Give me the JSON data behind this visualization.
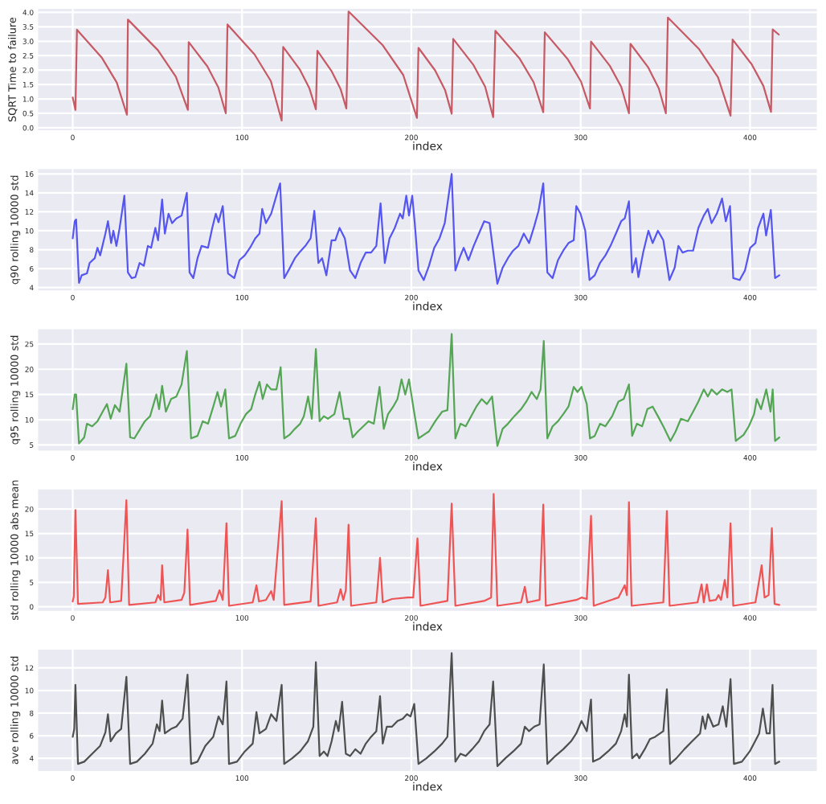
{
  "chart_data": [
    {
      "type": "line",
      "xlabel": "index",
      "ylabel": "SQRT Time to failure",
      "grid": true,
      "xlim": [
        -21,
        440
      ],
      "xticks": [
        0,
        100,
        200,
        300,
        400
      ],
      "ylim": [
        -0.12,
        4.15
      ],
      "yticks": [
        {
          "value": 0,
          "label": "0.0"
        },
        0.5,
        {
          "value": 1,
          "label": "1.0"
        },
        1.5,
        {
          "value": 2,
          "label": "2.0"
        },
        2.5,
        {
          "value": 3,
          "label": "3.0"
        },
        3.5,
        {
          "value": 4,
          "label": "4.0"
        }
      ],
      "x": [
        0,
        1.6,
        2.5,
        17.3,
        26,
        32,
        32.6,
        50.3,
        60.9,
        68,
        68.5,
        79.5,
        86,
        90.4,
        91.4,
        107.4,
        117,
        123.4,
        124.3,
        134,
        139.7,
        143.6,
        144.5,
        153,
        158.2,
        161.6,
        162.9,
        183.1,
        195.2,
        203.3,
        204.2,
        214,
        219.9,
        223.8,
        224.7,
        236.5,
        243.6,
        248.3,
        249.6,
        263.8,
        272.2,
        277.9,
        278.8,
        292.2,
        300.2,
        305.5,
        306.1,
        317.3,
        324,
        328.5,
        329.4,
        339.9,
        346.1,
        350.3,
        351.5,
        370,
        381.1,
        388.5,
        389.7,
        401,
        407.9,
        412.4,
        413.4,
        417
      ],
      "series": [
        {
          "color": "#c0404a",
          "values": [
            1.05,
            0.62,
            3.4,
            2.42,
            1.57,
            0.45,
            3.75,
            2.69,
            1.77,
            0.62,
            2.97,
            2.13,
            1.4,
            0.5,
            3.58,
            2.54,
            1.62,
            0.25,
            2.8,
            2.03,
            1.38,
            0.64,
            2.67,
            1.95,
            1.34,
            0.67,
            4.03,
            2.86,
            1.83,
            0.34,
            2.77,
            1.99,
            1.31,
            0.49,
            3.08,
            2.19,
            1.42,
            0.37,
            3.36,
            2.41,
            1.58,
            0.54,
            3.31,
            2.39,
            1.6,
            0.67,
            2.99,
            2.14,
            1.41,
            0.5,
            2.91,
            2.09,
            1.37,
            0.5,
            3.82,
            2.72,
            1.75,
            0.42,
            3.06,
            2.2,
            1.45,
            0.55,
            3.41,
            3.23
          ]
        }
      ]
    },
    {
      "type": "line",
      "xlabel": "index",
      "ylabel": "q90 rolling 10000 std",
      "grid": true,
      "xlim": [
        -21,
        440
      ],
      "xticks": [
        0,
        100,
        200,
        300,
        400
      ],
      "ylim": [
        3.6,
        16.6
      ],
      "yticks": [
        4,
        6,
        8,
        10,
        12,
        14,
        16
      ],
      "x": [
        0,
        1.2,
        2,
        3.7,
        5.3,
        8.4,
        10,
        13,
        14.6,
        16.2,
        19.3,
        20.8,
        22.7,
        24,
        25.8,
        27.7,
        30.5,
        32.6,
        34.8,
        37,
        39.5,
        42,
        44.4,
        46.3,
        48.8,
        50.4,
        52.8,
        54.4,
        56.6,
        58.7,
        61.2,
        64.3,
        67.4,
        69,
        71.2,
        73.7,
        76.1,
        79.9,
        82.4,
        84.5,
        86.1,
        88.6,
        91.7,
        95.4,
        98.5,
        101.6,
        104.7,
        107.8,
        110.3,
        111.9,
        114.1,
        117.2,
        120.3,
        122.5,
        124.9,
        128,
        131.2,
        134.3,
        137.4,
        140.5,
        142.7,
        145.1,
        147.3,
        149.8,
        152.9,
        155.1,
        157.6,
        160.7,
        163.8,
        166.9,
        170,
        173.1,
        176.2,
        179.3,
        181.8,
        184.3,
        187.1,
        190.2,
        193.3,
        194.9,
        197,
        198.6,
        200.5,
        202,
        204.2,
        207.3,
        210.4,
        213.5,
        216.6,
        219.7,
        223.8,
        226,
        228.4,
        230.9,
        233.7,
        236.8,
        239.9,
        243,
        246.2,
        250.8,
        253.9,
        257,
        260.1,
        263.2,
        266.4,
        269.5,
        272.6,
        275.1,
        277.9,
        280.3,
        283.4,
        286.6,
        289.7,
        292.8,
        295.9,
        297.4,
        299.9,
        302.7,
        305.2,
        308.3,
        311.4,
        314.6,
        317.6,
        320.8,
        323.9,
        326,
        328.5,
        330.4,
        332.6,
        334.1,
        336.9,
        340,
        342.5,
        345.6,
        348.8,
        352.4,
        355.5,
        357.7,
        360.2,
        363.3,
        366.4,
        369.5,
        372.7,
        375.1,
        377.3,
        380.4,
        383.5,
        385.7,
        388.2,
        390.1,
        393.9,
        397,
        400.1,
        403.2,
        404.8,
        407.9,
        409.5,
        412.3,
        414.8,
        417.3
      ],
      "series": [
        {
          "color": "#3b3bf0",
          "values": [
            9.2,
            11.0,
            11.2,
            4.5,
            5.3,
            5.5,
            6.6,
            7.1,
            8.2,
            7.4,
            9.7,
            11.0,
            8.7,
            10.0,
            8.4,
            10.3,
            13.7,
            5.6,
            5.0,
            5.1,
            6.6,
            6.3,
            8.4,
            8.2,
            10.3,
            9.0,
            13.3,
            9.7,
            11.8,
            10.8,
            11.3,
            11.6,
            14.0,
            5.6,
            5.0,
            7.1,
            8.4,
            8.2,
            10.3,
            11.8,
            10.9,
            12.6,
            5.5,
            5.0,
            6.9,
            7.4,
            8.2,
            9.2,
            9.7,
            12.3,
            10.8,
            11.8,
            13.7,
            15.0,
            5.0,
            6.0,
            7.1,
            7.8,
            8.4,
            9.2,
            12.1,
            6.6,
            7.1,
            5.3,
            9.0,
            9.0,
            10.3,
            9.2,
            5.8,
            5.0,
            6.6,
            7.7,
            7.7,
            8.4,
            12.9,
            6.6,
            9.2,
            10.3,
            11.8,
            11.3,
            13.7,
            11.6,
            13.7,
            10.8,
            5.8,
            4.8,
            6.3,
            8.2,
            9.2,
            10.8,
            16.0,
            5.8,
            7.1,
            8.2,
            6.9,
            8.4,
            9.7,
            11.0,
            10.8,
            4.4,
            6.1,
            7.1,
            7.9,
            8.4,
            9.7,
            8.7,
            10.5,
            12.1,
            15.0,
            5.6,
            5.0,
            6.9,
            7.9,
            8.7,
            9.0,
            12.6,
            11.8,
            10.0,
            4.8,
            5.3,
            6.6,
            7.4,
            8.4,
            9.7,
            11.0,
            11.3,
            13.1,
            5.6,
            7.1,
            5.1,
            7.7,
            10.0,
            8.7,
            10.0,
            9.0,
            4.8,
            6.1,
            8.4,
            7.7,
            7.9,
            7.9,
            10.3,
            11.6,
            12.3,
            10.8,
            11.8,
            13.4,
            11.0,
            12.6,
            5.0,
            4.8,
            5.8,
            8.2,
            8.7,
            10.3,
            11.8,
            9.5,
            12.2,
            5.0,
            5.3
          ]
        }
      ]
    },
    {
      "type": "line",
      "xlabel": "index",
      "ylabel": "q95 rolling 10000 std",
      "grid": true,
      "xlim": [
        -21,
        440
      ],
      "xticks": [
        0,
        100,
        200,
        300,
        400
      ],
      "ylim": [
        3.7,
        28.1
      ],
      "yticks": [
        5,
        10,
        15,
        20,
        25
      ],
      "x": [
        0,
        1.2,
        2,
        3.7,
        6.8,
        8.4,
        11.5,
        14.6,
        17.7,
        20.2,
        22.4,
        24.9,
        27.7,
        31.7,
        33.9,
        36.4,
        39.5,
        42.6,
        45.7,
        49.4,
        51,
        52.8,
        55,
        58.1,
        61.2,
        64.3,
        67.4,
        69.9,
        73.7,
        76.8,
        79.9,
        83,
        85.5,
        87.6,
        90.1,
        92.3,
        96,
        99.1,
        102.3,
        105.4,
        107.8,
        110.3,
        112.2,
        114.7,
        117.2,
        120.3,
        122.8,
        124.9,
        128,
        131.2,
        134.3,
        136.5,
        139,
        141.2,
        143.6,
        145.8,
        148.3,
        150.7,
        154.5,
        157.6,
        160.1,
        163.2,
        165.3,
        168.5,
        171.6,
        174.7,
        177.8,
        181.2,
        183.7,
        186.2,
        189.3,
        191.8,
        194.2,
        196.4,
        198.6,
        201.1,
        204.2,
        207.3,
        210.4,
        214.1,
        218.2,
        221.3,
        223.8,
        226,
        229,
        232.1,
        235.3,
        238.4,
        241.5,
        244.6,
        247.7,
        250.8,
        253.9,
        257,
        260.8,
        264.8,
        267.9,
        271,
        274.1,
        276.3,
        278.2,
        280.3,
        283.4,
        286.6,
        289.7,
        292.8,
        295.9,
        298.1,
        300.5,
        303.6,
        305.5,
        308.3,
        311.4,
        314.6,
        318.6,
        322.3,
        325.4,
        328.5,
        330.4,
        333.2,
        336.3,
        339.4,
        342.5,
        345.6,
        348.8,
        353,
        356.1,
        359.2,
        363.3,
        366.4,
        369.5,
        372.7,
        375.1,
        377.3,
        380.4,
        383.5,
        386.6,
        389.1,
        391.6,
        396.2,
        399.3,
        402.4,
        404,
        406.5,
        409.6,
        412.1,
        413.4,
        414.8,
        417.3
      ],
      "series": [
        {
          "color": "#3a9a3a",
          "values": [
            12.1,
            15.0,
            15.0,
            5.3,
            6.5,
            9.2,
            8.7,
            9.7,
            11.6,
            13.1,
            10.2,
            12.9,
            11.6,
            21.1,
            6.5,
            6.3,
            8.0,
            9.7,
            10.7,
            15.0,
            12.1,
            16.7,
            11.6,
            14.1,
            14.6,
            17.0,
            23.6,
            6.3,
            6.8,
            9.7,
            9.2,
            12.6,
            15.5,
            12.6,
            16.0,
            6.3,
            6.8,
            9.2,
            11.1,
            12.1,
            15.0,
            17.5,
            14.1,
            17.0,
            16.0,
            16.0,
            20.4,
            6.3,
            7.0,
            8.2,
            9.2,
            10.7,
            14.6,
            10.2,
            24.0,
            9.7,
            10.7,
            10.2,
            11.1,
            15.5,
            10.2,
            10.2,
            6.5,
            7.7,
            8.7,
            9.7,
            9.2,
            16.5,
            8.2,
            11.1,
            12.6,
            14.1,
            18.0,
            15.0,
            18.0,
            12.6,
            6.3,
            7.0,
            7.7,
            9.7,
            11.6,
            11.9,
            27.0,
            6.3,
            9.2,
            8.7,
            10.7,
            12.6,
            14.1,
            13.1,
            14.6,
            4.8,
            8.2,
            9.2,
            10.7,
            12.1,
            13.6,
            15.5,
            14.1,
            16.0,
            25.6,
            6.3,
            8.7,
            9.7,
            11.1,
            12.6,
            16.5,
            15.5,
            16.5,
            13.1,
            6.3,
            6.8,
            9.2,
            8.7,
            10.7,
            13.6,
            14.1,
            17.0,
            6.8,
            9.2,
            8.7,
            12.1,
            12.6,
            10.7,
            8.7,
            5.8,
            7.7,
            10.2,
            9.7,
            11.6,
            13.6,
            16.0,
            14.6,
            16.0,
            15.0,
            16.0,
            15.5,
            16.0,
            5.8,
            7.0,
            8.7,
            11.1,
            14.1,
            12.1,
            16.0,
            11.6,
            16.0,
            5.8,
            6.5
          ]
        }
      ]
    },
    {
      "type": "line",
      "xlabel": "index",
      "ylabel": "std rolling 10000 abs mean",
      "grid": true,
      "xlim": [
        -21,
        440
      ],
      "xticks": [
        0,
        100,
        200,
        300,
        400
      ],
      "ylim": [
        -1,
        24.2
      ],
      "yticks": [
        0,
        5,
        10,
        15,
        20
      ],
      "x": [
        0,
        0.6,
        1.6,
        3.1,
        17.7,
        19.3,
        20.8,
        22.1,
        28.6,
        31.7,
        33.3,
        48.8,
        50.4,
        51.9,
        52.8,
        54.1,
        64.3,
        65.9,
        67.8,
        69.3,
        84.5,
        86.7,
        88.6,
        90.8,
        92.3,
        106.3,
        108.5,
        110,
        114.1,
        117.2,
        118.7,
        123.4,
        124.9,
        140.5,
        143.6,
        145.1,
        156.1,
        158.2,
        159.8,
        161.3,
        162.9,
        164.4,
        179.3,
        181.5,
        183.1,
        188.6,
        197.9,
        201.1,
        203.6,
        205.4,
        221.3,
        223.8,
        226,
        243,
        247.1,
        248.6,
        250.8,
        264.8,
        267,
        268.5,
        275.7,
        277.9,
        279.4,
        297.4,
        300.5,
        303.6,
        306.1,
        307.7,
        322.3,
        326,
        327.3,
        328.5,
        330.1,
        348.8,
        350.9,
        352.5,
        369,
        371.4,
        372.7,
        374.5,
        376.1,
        379.8,
        381.4,
        382.9,
        385.1,
        386.6,
        388.5,
        390.1,
        403.2,
        405.7,
        406.9,
        408.6,
        411,
        412.9,
        414.5,
        417.3
      ],
      "series": [
        {
          "color": "#f03a3a",
          "values": [
            1.1,
            2.1,
            19.8,
            0.6,
            0.9,
            1.9,
            7.5,
            0.9,
            1.2,
            21.8,
            0.4,
            0.9,
            2.4,
            1.4,
            8.5,
            0.9,
            1.4,
            2.9,
            15.8,
            0.4,
            1.2,
            3.4,
            1.4,
            17.1,
            0.2,
            0.9,
            4.4,
            1.1,
            1.4,
            3.2,
            1.4,
            21.6,
            0.4,
            1.1,
            18.1,
            0.2,
            0.9,
            3.6,
            1.4,
            3.4,
            16.8,
            0.2,
            0.9,
            10.0,
            0.9,
            1.6,
            1.9,
            1.9,
            14.0,
            0.2,
            1.2,
            21.1,
            0.2,
            1.2,
            1.9,
            23.1,
            0.2,
            0.9,
            4.1,
            0.9,
            1.4,
            20.9,
            0.2,
            1.4,
            1.9,
            1.6,
            18.6,
            0.2,
            1.9,
            4.4,
            2.4,
            21.4,
            0.2,
            0.9,
            19.6,
            0.2,
            0.9,
            4.6,
            0.9,
            4.6,
            1.2,
            1.4,
            2.4,
            1.4,
            5.5,
            1.9,
            17.1,
            0.2,
            0.9,
            6.0,
            8.5,
            1.9,
            2.4,
            16.1,
            0.6,
            0.4
          ]
        }
      ]
    },
    {
      "type": "line",
      "xlabel": "index",
      "ylabel": "ave rolling 10000 std",
      "grid": true,
      "xlim": [
        -21,
        440
      ],
      "xticks": [
        0,
        100,
        200,
        300,
        400
      ],
      "ylim": [
        2.8,
        13.7
      ],
      "yticks": [
        4,
        6,
        8,
        10,
        12
      ],
      "x": [
        0,
        0.9,
        1.6,
        3.1,
        6.8,
        11.5,
        16.2,
        19.3,
        20.8,
        22.4,
        25.5,
        28.6,
        31.7,
        33.9,
        37.9,
        42.6,
        47.2,
        49.7,
        51.3,
        52.8,
        54.4,
        58.1,
        61.2,
        64.9,
        67.8,
        69.9,
        73.7,
        78.3,
        83,
        86.1,
        88.6,
        90.8,
        92.3,
        97,
        101.6,
        106.3,
        108.5,
        110.3,
        114.1,
        117.2,
        120.3,
        123.4,
        124.9,
        129.6,
        134.3,
        138.9,
        142.1,
        143.6,
        145.8,
        148.3,
        150.5,
        152.9,
        155.4,
        157,
        159.1,
        161.3,
        163.8,
        166.9,
        170,
        173.1,
        176.2,
        179.3,
        181.5,
        183.1,
        185.5,
        188.6,
        191.8,
        194.9,
        197.4,
        199.5,
        201.7,
        204.2,
        208.9,
        213.5,
        218.2,
        221.3,
        223.8,
        226,
        229,
        232.1,
        235.9,
        239.9,
        243,
        246.2,
        248.3,
        250.8,
        255.5,
        260.1,
        264.8,
        267,
        269.5,
        272.6,
        275.7,
        278.2,
        280.3,
        285,
        289.7,
        294.3,
        297.4,
        300.5,
        303.6,
        306.1,
        307.3,
        311.4,
        316.1,
        320.8,
        323.9,
        326,
        327.3,
        328.5,
        330.4,
        333.2,
        334.6,
        337.8,
        340.9,
        344,
        348.8,
        350.9,
        352.8,
        356.5,
        361.2,
        365.8,
        370.5,
        372,
        373.6,
        375.2,
        378.3,
        381.4,
        383.9,
        386,
        388.5,
        390.5,
        395.2,
        399.8,
        403,
        405.4,
        407.6,
        409.8,
        411.7,
        413.3,
        414.8,
        417.3
      ],
      "series": [
        {
          "color": "#333333",
          "values": [
            5.9,
            6.6,
            10.5,
            3.5,
            3.7,
            4.4,
            5.1,
            6.3,
            7.9,
            5.5,
            6.2,
            6.6,
            11.2,
            3.5,
            3.7,
            4.4,
            5.3,
            7.0,
            6.4,
            9.1,
            6.2,
            6.6,
            6.8,
            7.5,
            11.4,
            3.5,
            3.7,
            5.1,
            5.9,
            7.7,
            7.0,
            10.8,
            3.5,
            3.7,
            4.6,
            5.3,
            8.1,
            6.2,
            6.6,
            7.9,
            7.3,
            10.5,
            3.5,
            4.0,
            4.6,
            5.5,
            6.8,
            12.5,
            4.2,
            4.6,
            4.2,
            5.5,
            7.3,
            6.4,
            9.0,
            4.4,
            4.2,
            4.8,
            4.4,
            5.3,
            5.9,
            6.4,
            9.5,
            5.3,
            6.8,
            6.8,
            7.3,
            7.5,
            7.9,
            7.7,
            8.8,
            3.5,
            4.0,
            4.6,
            5.3,
            5.9,
            13.3,
            3.7,
            4.4,
            4.2,
            4.8,
            5.5,
            6.4,
            7.0,
            10.8,
            3.3,
            4.0,
            4.6,
            5.3,
            6.8,
            6.4,
            6.8,
            7.0,
            12.3,
            3.5,
            4.2,
            4.8,
            5.5,
            6.2,
            7.3,
            6.4,
            9.2,
            3.7,
            4.0,
            4.6,
            5.3,
            6.4,
            7.9,
            6.8,
            11.4,
            4.0,
            4.4,
            4.0,
            4.8,
            5.7,
            5.9,
            6.4,
            10.1,
            3.5,
            4.0,
            4.8,
            5.5,
            6.2,
            7.7,
            6.6,
            7.9,
            6.8,
            7.0,
            8.6,
            6.8,
            11.0,
            3.5,
            3.7,
            4.6,
            5.5,
            6.2,
            8.4,
            6.2,
            6.2,
            10.5,
            3.5,
            3.7
          ]
        }
      ]
    }
  ]
}
